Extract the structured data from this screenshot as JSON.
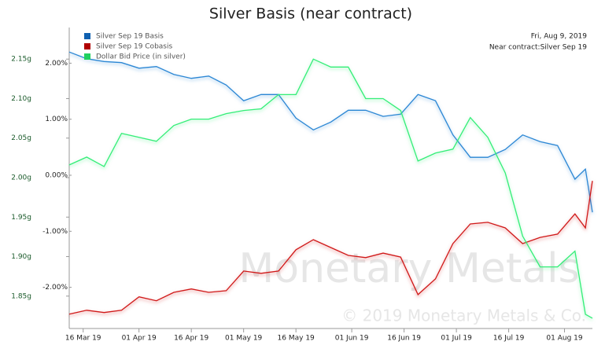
{
  "chart_data": {
    "type": "line",
    "title": "Silver Basis (near contract)",
    "date_text": "Fri, Aug 9, 2019",
    "contract_text": "Near contract:Silver Sep 19",
    "watermark": "Monetary Metals",
    "copyright": "© 2019 Monetary Metals & Co.",
    "x": [
      "2019-03-12",
      "2019-03-17",
      "2019-03-22",
      "2019-03-27",
      "2019-04-01",
      "2019-04-06",
      "2019-04-11",
      "2019-04-16",
      "2019-04-21",
      "2019-04-26",
      "2019-05-01",
      "2019-05-06",
      "2019-05-11",
      "2019-05-16",
      "2019-05-21",
      "2019-05-26",
      "2019-05-31",
      "2019-06-05",
      "2019-06-10",
      "2019-06-15",
      "2019-06-20",
      "2019-06-25",
      "2019-06-30",
      "2019-07-05",
      "2019-07-10",
      "2019-07-15",
      "2019-07-20",
      "2019-07-25",
      "2019-07-30",
      "2019-08-04",
      "2019-08-07",
      "2019-08-09"
    ],
    "xlim": [
      "2019-03-12",
      "2019-08-09"
    ],
    "xticks": [
      {
        "value": "2019-03-16",
        "label": "16 Mar 19"
      },
      {
        "value": "2019-04-01",
        "label": "01 Apr 19"
      },
      {
        "value": "2019-04-16",
        "label": "16 Apr 19"
      },
      {
        "value": "2019-05-01",
        "label": "01 May 19"
      },
      {
        "value": "2019-05-16",
        "label": "16 May 19"
      },
      {
        "value": "2019-06-01",
        "label": "01 Jun 19"
      },
      {
        "value": "2019-06-16",
        "label": "16 Jun 19"
      },
      {
        "value": "2019-07-01",
        "label": "01 Jul 19"
      },
      {
        "value": "2019-07-16",
        "label": "16 Jul 19"
      },
      {
        "value": "2019-08-01",
        "label": "01 Aug 19"
      }
    ],
    "ylim": [
      1.809,
      2.19
    ],
    "yticks": [
      {
        "value": 1.85,
        "label": "1.85g"
      },
      {
        "value": 1.9,
        "label": "1.90g"
      },
      {
        "value": 1.95,
        "label": "1.95g"
      },
      {
        "value": 2.0,
        "label": "2.00g"
      },
      {
        "value": 2.05,
        "label": "2.05g"
      },
      {
        "value": 2.1,
        "label": "2.10g"
      },
      {
        "value": 2.15,
        "label": "2.15g"
      }
    ],
    "y2lim": [
      -2.735,
      2.637
    ],
    "y2ticks": [
      {
        "value": -2,
        "label": "-2.00%"
      },
      {
        "value": -1,
        "label": "-1.00%"
      },
      {
        "value": 0,
        "label": "0.00%"
      },
      {
        "value": 1,
        "label": "1.00%"
      },
      {
        "value": 2,
        "label": "2.00%"
      }
    ],
    "series": [
      {
        "name": "Silver Sep 19 Basis",
        "color": "#2a86d4",
        "legend_color": "#1060b0",
        "axis": "y2",
        "values": [
          2.2,
          2.08,
          2.03,
          2.01,
          1.91,
          1.94,
          1.8,
          1.73,
          1.77,
          1.61,
          1.33,
          1.44,
          1.44,
          1.02,
          0.81,
          0.95,
          1.16,
          1.16,
          1.05,
          1.09,
          1.44,
          1.33,
          0.72,
          0.32,
          0.32,
          0.46,
          0.72,
          0.6,
          0.53,
          -0.07,
          0.11,
          -0.66
        ]
      },
      {
        "name": "Silver Sep 19 Cobasis",
        "color": "#d01818",
        "legend_color": "#b00000",
        "axis": "y2",
        "values": [
          -2.48,
          -2.41,
          -2.45,
          -2.41,
          -2.17,
          -2.24,
          -2.09,
          -2.03,
          -2.09,
          -2.06,
          -1.71,
          -1.75,
          -1.71,
          -1.33,
          -1.15,
          -1.29,
          -1.43,
          -1.47,
          -1.39,
          -1.46,
          -2.13,
          -1.85,
          -1.22,
          -0.87,
          -0.84,
          -0.94,
          -1.22,
          -1.11,
          -1.05,
          -0.69,
          -0.94,
          -0.1
        ]
      },
      {
        "name": "Dollar Bid Price (in silver)",
        "color": "#33ee77",
        "legend_color": "#20d060",
        "axis": "y",
        "values": [
          2.016,
          2.026,
          2.014,
          2.056,
          2.051,
          2.046,
          2.066,
          2.074,
          2.074,
          2.081,
          2.085,
          2.087,
          2.105,
          2.105,
          2.15,
          2.14,
          2.14,
          2.1,
          2.1,
          2.085,
          2.021,
          2.031,
          2.036,
          2.076,
          2.051,
          2.006,
          1.926,
          1.887,
          1.887,
          1.907,
          1.827,
          1.822
        ]
      }
    ]
  }
}
